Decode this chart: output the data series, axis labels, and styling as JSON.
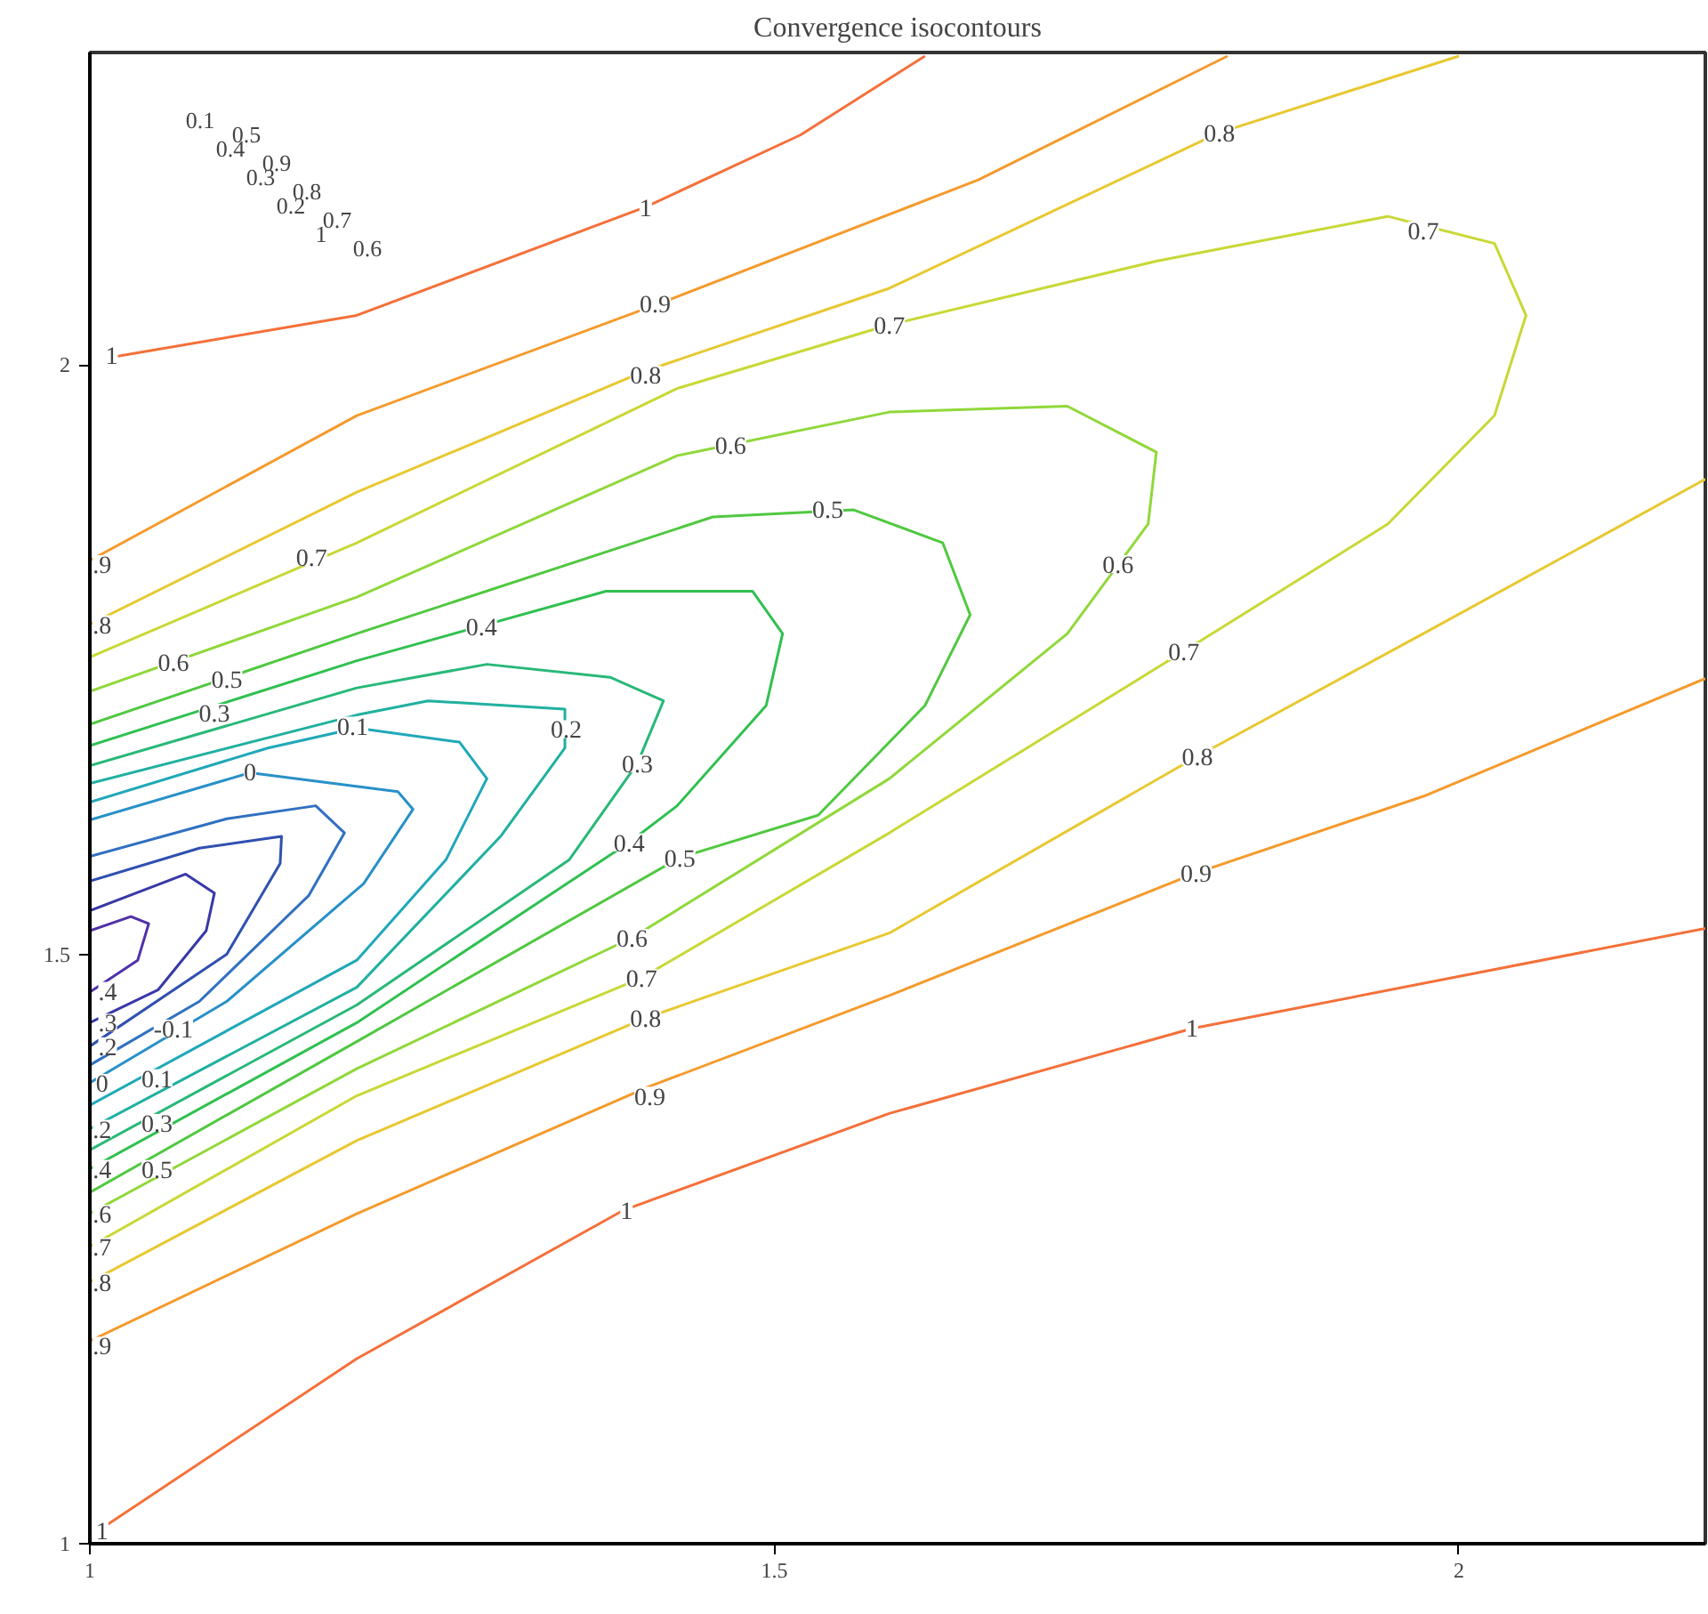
{
  "chart_data": {
    "type": "line",
    "title": "Convergence isocontours",
    "xlim": [
      1,
      2.18
    ],
    "ylim": [
      1,
      2.265
    ],
    "xticks": [
      1,
      1.5,
      2
    ],
    "yticks": [
      1,
      1.5,
      2
    ],
    "grid": false,
    "series": [
      {
        "color": "#f4703a",
        "x": [
          1.006,
          1.195,
          1.39,
          1.584,
          1.805,
          2.18
        ],
        "values": [
          1.011,
          1.157,
          1.283,
          1.365,
          1.437,
          1.522
        ]
      },
      {
        "color": "#f4703a",
        "x": [
          1.013,
          1.195,
          1.406,
          1.519,
          1.61
        ],
        "values": [
          2.006,
          2.042,
          2.134,
          2.195,
          2.262
        ]
      },
      {
        "color": "#f59a2c",
        "x": [
          1.0,
          1.195,
          1.409,
          1.584,
          1.808,
          1.974,
          2.18
        ],
        "values": [
          1.172,
          1.28,
          1.388,
          1.465,
          1.569,
          1.634,
          1.734
        ]
      },
      {
        "color": "#f59a2c",
        "x": [
          1.0,
          1.195,
          1.416,
          1.649,
          1.831
        ],
        "values": [
          1.834,
          1.957,
          2.052,
          2.157,
          2.262
        ]
      },
      {
        "color": "#e8c830",
        "x": [
          1.0,
          1.195,
          1.406,
          1.584,
          1.809,
          1.974,
          2.18
        ],
        "values": [
          1.222,
          1.342,
          1.446,
          1.518,
          1.668,
          1.772,
          1.903
        ]
      },
      {
        "color": "#e8c830",
        "x": [
          1.0,
          1.195,
          1.406,
          1.584,
          1.825,
          2.0
        ],
        "values": [
          1.78,
          1.892,
          1.995,
          2.065,
          2.197,
          2.262
        ]
      },
      {
        "color": "#c8d836",
        "x": [
          1.0,
          1.195,
          1.429,
          1.584,
          1.779,
          1.948,
          2.026,
          2.049,
          2.026,
          1.948,
          1.799,
          1.584,
          1.403,
          1.195,
          1.0
        ],
        "values": [
          1.752,
          1.849,
          1.98,
          2.034,
          2.088,
          2.126,
          2.103,
          2.042,
          1.957,
          1.865,
          1.757,
          1.603,
          1.48,
          1.38,
          1.252
        ]
      },
      {
        "color": "#90d83a",
        "x": [
          1.0,
          1.195,
          1.429,
          1.584,
          1.714,
          1.779,
          1.773,
          1.714,
          1.584,
          1.396,
          1.195,
          1.0
        ],
        "values": [
          1.723,
          1.803,
          1.923,
          1.96,
          1.965,
          1.926,
          1.865,
          1.772,
          1.649,
          1.514,
          1.403,
          1.28
        ]
      },
      {
        "color": "#50c840",
        "x": [
          1.0,
          1.195,
          1.455,
          1.558,
          1.623,
          1.643,
          1.61,
          1.532,
          1.431,
          1.195,
          1.0
        ],
        "values": [
          1.695,
          1.772,
          1.871,
          1.877,
          1.849,
          1.788,
          1.711,
          1.618,
          1.582,
          1.426,
          1.298
        ]
      },
      {
        "color": "#30c050",
        "x": [
          1.0,
          1.195,
          1.377,
          1.484,
          1.506,
          1.494,
          1.429,
          1.394,
          1.195,
          1.0
        ],
        "values": [
          1.677,
          1.749,
          1.808,
          1.808,
          1.772,
          1.711,
          1.626,
          1.595,
          1.442,
          1.318
        ]
      },
      {
        "color": "#28b878",
        "x": [
          1.0,
          1.195,
          1.29,
          1.38,
          1.419,
          1.4,
          1.35,
          1.195,
          1.0
        ],
        "values": [
          1.66,
          1.726,
          1.746,
          1.735,
          1.715,
          1.662,
          1.58,
          1.457,
          1.334
        ]
      },
      {
        "color": "#20b0a0",
        "x": [
          1.0,
          1.195,
          1.247,
          1.347,
          1.347,
          1.3,
          1.195,
          1.0
        ],
        "values": [
          1.645,
          1.703,
          1.715,
          1.708,
          1.675,
          1.6,
          1.472,
          1.352
        ]
      },
      {
        "color": "#20a8b8",
        "x": [
          1.0,
          1.13,
          1.195,
          1.27,
          1.29,
          1.26,
          1.195,
          1.0
        ],
        "values": [
          1.629,
          1.675,
          1.692,
          1.68,
          1.649,
          1.58,
          1.495,
          1.372
        ]
      },
      {
        "color": "#2890c8",
        "x": [
          1.0,
          1.117,
          1.225,
          1.236,
          1.2,
          1.1,
          1.0
        ],
        "values": [
          1.614,
          1.654,
          1.638,
          1.623,
          1.56,
          1.46,
          1.391
        ]
      },
      {
        "color": "#3070c0",
        "x": [
          1.0,
          1.1,
          1.165,
          1.186,
          1.16,
          1.08,
          1.0
        ],
        "values": [
          1.583,
          1.615,
          1.626,
          1.603,
          1.55,
          1.46,
          1.406
        ]
      },
      {
        "color": "#3050b0",
        "x": [
          1.0,
          1.08,
          1.14,
          1.139,
          1.1,
          1.0
        ],
        "values": [
          1.562,
          1.59,
          1.6,
          1.577,
          1.5,
          1.422
        ]
      },
      {
        "color": "#3838a8",
        "x": [
          1.0,
          1.07,
          1.091,
          1.085,
          1.05,
          1.0
        ],
        "values": [
          1.537,
          1.568,
          1.552,
          1.52,
          1.47,
          1.442
        ]
      },
      {
        "color": "#5030a8",
        "x": [
          1.0,
          1.03,
          1.043,
          1.035,
          1.0
        ],
        "values": [
          1.52,
          1.532,
          1.526,
          1.495,
          1.468
        ]
      }
    ],
    "annotations": [
      {
        "text": "1",
        "x": 1.406,
        "y": 2.134
      },
      {
        "text": "0.9",
        "x": 1.413,
        "y": 2.052
      },
      {
        "text": "0.8",
        "x": 1.406,
        "y": 1.992
      },
      {
        "text": "0.7",
        "x": 1.584,
        "y": 2.034
      },
      {
        "text": "0.6",
        "x": 1.468,
        "y": 1.932
      },
      {
        "text": "0.5",
        "x": 1.539,
        "y": 1.878
      },
      {
        "text": "0.4",
        "x": 1.286,
        "y": 1.778
      },
      {
        "text": "0.7",
        "x": 1.162,
        "y": 1.837
      },
      {
        "text": "0.6",
        "x": 1.061,
        "y": 1.748
      },
      {
        "text": "0.5",
        "x": 1.1,
        "y": 1.734
      },
      {
        "text": "0.3",
        "x": 1.091,
        "y": 1.705
      },
      {
        "text": "0.1",
        "x": 1.192,
        "y": 1.694
      },
      {
        "text": "0",
        "x": 1.117,
        "y": 1.655
      },
      {
        "text": "0.2",
        "x": 1.348,
        "y": 1.691
      },
      {
        "text": "0.3",
        "x": 1.4,
        "y": 1.662
      },
      {
        "text": "0.4",
        "x": 1.394,
        "y": 1.595
      },
      {
        "text": "0.5",
        "x": 1.431,
        "y": 1.582
      },
      {
        "text": "0.6",
        "x": 1.396,
        "y": 1.514
      },
      {
        "text": "0.7",
        "x": 1.403,
        "y": 1.48
      },
      {
        "text": "0.8",
        "x": 1.406,
        "y": 1.446
      },
      {
        "text": "0.9",
        "x": 1.409,
        "y": 1.38
      },
      {
        "text": "1",
        "x": 1.392,
        "y": 1.283
      },
      {
        "text": "0.8",
        "x": 1.825,
        "y": 2.197
      },
      {
        "text": "0.7",
        "x": 1.974,
        "y": 2.114
      },
      {
        "text": "0.6",
        "x": 1.751,
        "y": 1.831
      },
      {
        "text": "0.7",
        "x": 1.799,
        "y": 1.757
      },
      {
        "text": "0.8",
        "x": 1.809,
        "y": 1.668
      },
      {
        "text": "0.9",
        "x": 1.808,
        "y": 1.569
      },
      {
        "text": "1",
        "x": 1.805,
        "y": 1.438
      },
      {
        "text": "-0.1",
        "x": 1.061,
        "y": 1.437
      },
      {
        "text": "0.1",
        "x": 1.049,
        "y": 1.395
      },
      {
        "text": "0.3",
        "x": 1.049,
        "y": 1.357
      },
      {
        "text": "0.5",
        "x": 1.049,
        "y": 1.318
      },
      "0.1",
      "0.5",
      "0.4",
      "0.9",
      "0.3",
      "0.8",
      "0.2",
      "0.7",
      "1",
      "0.6",
      {
        "text": "1",
        "x": 1.016,
        "y": 2.008
      },
      {
        "text": ".9",
        "x": 1.009,
        "y": 1.831
      },
      {
        "text": ".8",
        "x": 1.009,
        "y": 1.78
      },
      {
        "text": ".4",
        "x": 1.013,
        "y": 1.469
      },
      {
        "text": ".3",
        "x": 1.013,
        "y": 1.442
      },
      {
        "text": ".2",
        "x": 1.013,
        "y": 1.422
      },
      {
        "text": "0",
        "x": 1.009,
        "y": 1.391
      },
      {
        "text": ".2",
        "x": 1.009,
        "y": 1.352
      },
      {
        "text": ".4",
        "x": 1.009,
        "y": 1.318
      },
      {
        "text": ".6",
        "x": 1.009,
        "y": 1.28
      },
      {
        "text": ".7",
        "x": 1.009,
        "y": 1.252
      },
      {
        "text": ".8",
        "x": 1.009,
        "y": 1.222
      },
      {
        "text": ".9",
        "x": 1.009,
        "y": 1.168
      },
      {
        "text": "1",
        "x": 1.009,
        "y": 1.011
      }
    ]
  }
}
